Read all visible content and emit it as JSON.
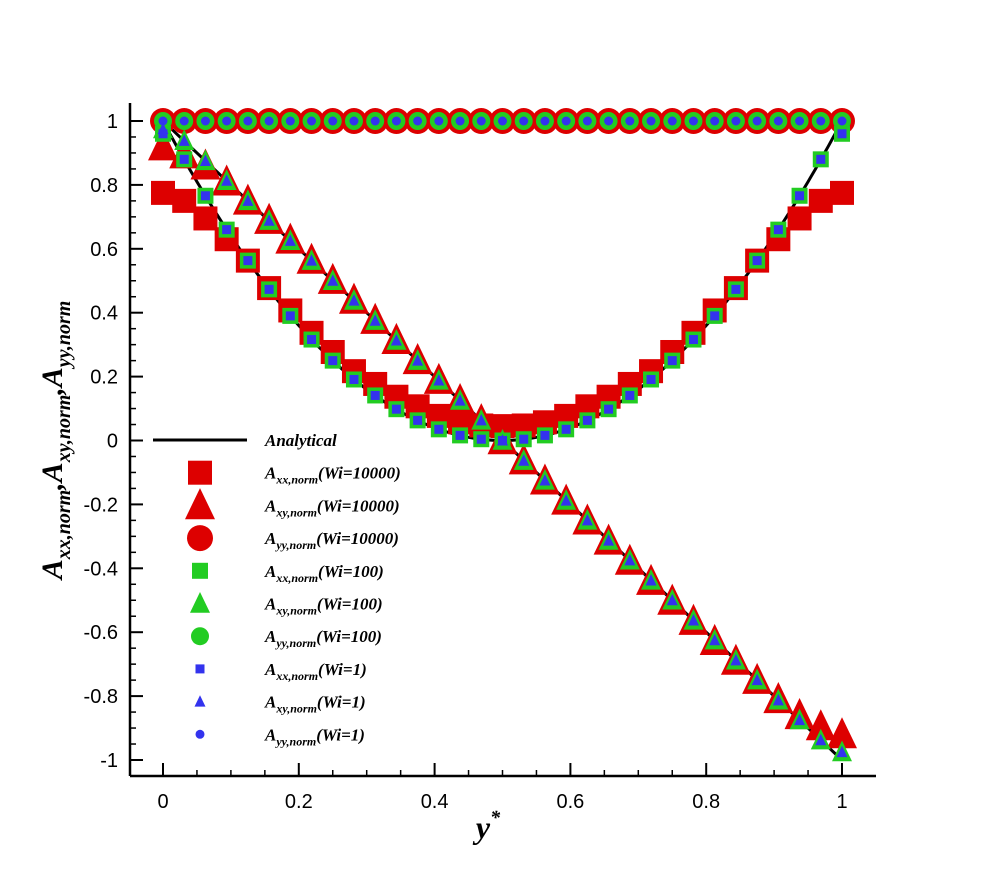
{
  "chart_data": {
    "type": "scatter",
    "title": "",
    "xlabel": "y",
    "xlabel_sup": "*",
    "ylabel_parts": [
      {
        "base": "A",
        "sub": "xx,norm"
      },
      {
        "base": ",A",
        "sub": "xy,norm"
      },
      {
        "base": ",A",
        "sub": "yy,norm"
      }
    ],
    "xlim": [
      0,
      1
    ],
    "ylim": [
      -1,
      1
    ],
    "x_ticks": [
      0,
      0.2,
      0.4,
      0.6,
      0.8,
      1
    ],
    "x_tick_labels": [
      "0",
      "0.2",
      "0.4",
      "0.6",
      "0.8",
      "1"
    ],
    "y_ticks": [
      -1,
      -0.8,
      -0.6,
      -0.4,
      -0.2,
      0,
      0.2,
      0.4,
      0.6,
      0.8,
      1
    ],
    "y_tick_labels": [
      "-1",
      "-0.8",
      "-0.6",
      "-0.4",
      "-0.2",
      "0",
      "0.2",
      "0.4",
      "0.6",
      "0.8",
      "1"
    ],
    "grid": false,
    "legend_position": "left-center",
    "x_samples": [
      0,
      0.03125,
      0.0625,
      0.09375,
      0.125,
      0.15625,
      0.1875,
      0.21875,
      0.25,
      0.28125,
      0.3125,
      0.34375,
      0.375,
      0.40625,
      0.4375,
      0.46875,
      0.5,
      0.53125,
      0.5625,
      0.59375,
      0.625,
      0.65625,
      0.6875,
      0.71875,
      0.75,
      0.78125,
      0.8125,
      0.84375,
      0.875,
      0.90625,
      0.9375,
      0.96875,
      1
    ],
    "series": [
      {
        "name": "Analytical",
        "label_base": "Analytical",
        "label_sub": "",
        "label_rest": "",
        "kind": "line",
        "color": "#000000",
        "functions": [
          "Axx: (1-2y)^2",
          "Axy: 1-2y",
          "Ayy: 1"
        ]
      },
      {
        "name": "A_xx,norm(Wi=10000)",
        "label_base": "A",
        "label_sub": "xx,norm",
        "label_rest": "(Wi=10000)",
        "marker": "square",
        "size": 12,
        "fill": "#dd0000",
        "stroke": "#dd0000",
        "y": [
          0.775,
          0.75,
          0.695,
          0.63,
          0.563,
          0.477,
          0.407,
          0.337,
          0.277,
          0.217,
          0.177,
          0.137,
          0.107,
          0.077,
          0.057,
          0.047,
          0.045,
          0.047,
          0.057,
          0.077,
          0.107,
          0.137,
          0.177,
          0.217,
          0.277,
          0.337,
          0.407,
          0.477,
          0.563,
          0.63,
          0.695,
          0.75,
          0.775
        ]
      },
      {
        "name": "A_xy,norm(Wi=10000)",
        "label_base": "A",
        "label_sub": "xy,norm",
        "label_rest": "(Wi=10000)",
        "marker": "triangle",
        "size": 15,
        "fill": "#dd0000",
        "stroke": "#dd0000",
        "y": [
          0.92,
          0.895,
          0.86,
          0.81,
          0.75,
          0.69,
          0.628,
          0.565,
          0.502,
          0.44,
          0.377,
          0.314,
          0.251,
          0.189,
          0.126,
          0.063,
          0.0,
          -0.063,
          -0.126,
          -0.189,
          -0.251,
          -0.314,
          -0.377,
          -0.44,
          -0.502,
          -0.565,
          -0.628,
          -0.69,
          -0.75,
          -0.81,
          -0.86,
          -0.895,
          -0.92
        ]
      },
      {
        "name": "A_yy,norm(Wi=10000)",
        "label_base": "A",
        "label_sub": "yy,norm",
        "label_rest": "(Wi=10000)",
        "marker": "circle",
        "size": 13,
        "fill": "#dd0000",
        "stroke": "#dd0000",
        "y": [
          1,
          1,
          1,
          1,
          1,
          1,
          1,
          1,
          1,
          1,
          1,
          1,
          1,
          1,
          1,
          1,
          1,
          1,
          1,
          1,
          1,
          1,
          1,
          1,
          1,
          1,
          1,
          1,
          1,
          1,
          1,
          1,
          1
        ]
      },
      {
        "name": "A_xx,norm(Wi=100)",
        "label_base": "A",
        "label_sub": "xx,norm",
        "label_rest": "(Wi=100)",
        "marker": "square",
        "size": 8,
        "fill": "#22cc22",
        "stroke": "#22cc22",
        "y": [
          0.96,
          0.88,
          0.766,
          0.66,
          0.563,
          0.473,
          0.39,
          0.316,
          0.25,
          0.191,
          0.141,
          0.098,
          0.063,
          0.035,
          0.016,
          0.004,
          0.0,
          0.004,
          0.016,
          0.035,
          0.063,
          0.098,
          0.141,
          0.191,
          0.25,
          0.316,
          0.39,
          0.473,
          0.563,
          0.66,
          0.766,
          0.88,
          0.96
        ]
      },
      {
        "name": "A_xy,norm(Wi=100)",
        "label_base": "A",
        "label_sub": "xy,norm",
        "label_rest": "(Wi=100)",
        "marker": "triangle",
        "size": 10,
        "fill": "#22cc22",
        "stroke": "#22cc22",
        "y": [
          0.975,
          0.938,
          0.875,
          0.813,
          0.75,
          0.688,
          0.625,
          0.563,
          0.5,
          0.438,
          0.375,
          0.313,
          0.25,
          0.188,
          0.125,
          0.063,
          0.0,
          -0.063,
          -0.125,
          -0.188,
          -0.25,
          -0.313,
          -0.375,
          -0.438,
          -0.5,
          -0.563,
          -0.625,
          -0.688,
          -0.75,
          -0.813,
          -0.875,
          -0.938,
          -0.975
        ]
      },
      {
        "name": "A_yy,norm(Wi=100)",
        "label_base": "A",
        "label_sub": "yy,norm",
        "label_rest": "(Wi=100)",
        "marker": "circle",
        "size": 9,
        "fill": "#22cc22",
        "stroke": "#22cc22",
        "y": [
          1,
          1,
          1,
          1,
          1,
          1,
          1,
          1,
          1,
          1,
          1,
          1,
          1,
          1,
          1,
          1,
          1,
          1,
          1,
          1,
          1,
          1,
          1,
          1,
          1,
          1,
          1,
          1,
          1,
          1,
          1,
          1,
          1
        ]
      },
      {
        "name": "A_xx,norm(Wi=1)",
        "label_base": "A",
        "label_sub": "xx,norm",
        "label_rest": "(Wi=1)",
        "marker": "square",
        "size": 4.5,
        "fill": "#3333ee",
        "stroke": "#3333ee",
        "y": [
          0.96,
          0.88,
          0.766,
          0.66,
          0.563,
          0.473,
          0.39,
          0.316,
          0.25,
          0.191,
          0.141,
          0.098,
          0.063,
          0.035,
          0.016,
          0.004,
          0.0,
          0.004,
          0.016,
          0.035,
          0.063,
          0.098,
          0.141,
          0.191,
          0.25,
          0.316,
          0.39,
          0.473,
          0.563,
          0.66,
          0.766,
          0.88,
          0.96
        ]
      },
      {
        "name": "A_xy,norm(Wi=1)",
        "label_base": "A",
        "label_sub": "xy,norm",
        "label_rest": "(Wi=1)",
        "marker": "triangle",
        "size": 5.5,
        "fill": "#3333ee",
        "stroke": "#3333ee",
        "y": [
          0.975,
          0.938,
          0.875,
          0.813,
          0.75,
          0.688,
          0.625,
          0.563,
          0.5,
          0.438,
          0.375,
          0.313,
          0.25,
          0.188,
          0.125,
          0.063,
          0.0,
          -0.063,
          -0.125,
          -0.188,
          -0.25,
          -0.313,
          -0.375,
          -0.438,
          -0.5,
          -0.563,
          -0.625,
          -0.688,
          -0.75,
          -0.813,
          -0.875,
          -0.938,
          -0.975
        ]
      },
      {
        "name": "A_yy,norm(Wi=1)",
        "label_base": "A",
        "label_sub": "yy,norm",
        "label_rest": "(Wi=1)",
        "marker": "circle",
        "size": 4.5,
        "fill": "#3333ee",
        "stroke": "#3333ee",
        "y": [
          1,
          1,
          1,
          1,
          1,
          1,
          1,
          1,
          1,
          1,
          1,
          1,
          1,
          1,
          1,
          1,
          1,
          1,
          1,
          1,
          1,
          1,
          1,
          1,
          1,
          1,
          1,
          1,
          1,
          1,
          1,
          1,
          1
        ]
      }
    ]
  }
}
